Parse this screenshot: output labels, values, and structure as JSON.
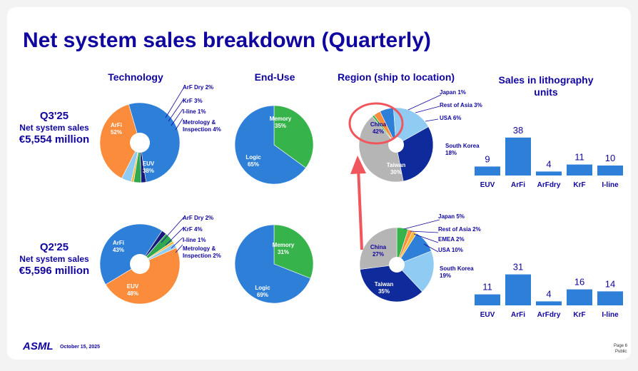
{
  "title": "Net system sales breakdown (Quarterly)",
  "headers": {
    "technology": "Technology",
    "end_use": "End-Use",
    "region": "Region (ship to location)",
    "litho_line1": "Sales in lithography",
    "litho_line2": "units"
  },
  "quarters": [
    {
      "quarter": "Q3'25",
      "label": "Net system sales",
      "value": "€5,554 million"
    },
    {
      "quarter": "Q2'25",
      "label": "Net system sales",
      "value": "€5,596 million"
    }
  ],
  "colors": {
    "brand": "#10069f",
    "arfi": "#2e7fd8",
    "euv": "#fb8c3c",
    "arf_dry": "#19197a",
    "krf": "#2fa84f",
    "iline": "#f6b93b",
    "metrology": "#8fcbf2",
    "memory": "#36b34a",
    "logic": "#2e7fd8",
    "china": "#b5b5b5",
    "taiwan": "#0f2a9b",
    "south_korea": "#8fcbf2",
    "usa": "#2e7fd8",
    "rest_of_asia": "#fb8c3c",
    "japan": "#36b34a",
    "emea": "#f6b93b",
    "bar": "#2e7fd8",
    "highlight": "#f0565b"
  },
  "chart_data": [
    {
      "type": "pie",
      "id": "tech_q3",
      "quarter": "Q3'25",
      "title": "Technology",
      "slices": [
        {
          "name": "ArFi",
          "value": 52,
          "label": "52%"
        },
        {
          "name": "EUV",
          "value": 38,
          "label": "38%"
        },
        {
          "name": "ArF Dry",
          "value": 2,
          "label": "2%"
        },
        {
          "name": "KrF",
          "value": 3,
          "label": "3%"
        },
        {
          "name": "I-line",
          "value": 1,
          "label": "1%"
        },
        {
          "name": "Metrology & Inspection",
          "value": 4,
          "label": "4%"
        }
      ]
    },
    {
      "type": "pie",
      "id": "enduse_q3",
      "quarter": "Q3'25",
      "title": "End-Use",
      "slices": [
        {
          "name": "Memory",
          "value": 35,
          "label": "35%"
        },
        {
          "name": "Logic",
          "value": 65,
          "label": "65%"
        }
      ]
    },
    {
      "type": "pie",
      "id": "region_q3",
      "quarter": "Q3'25",
      "title": "Region (ship to location)",
      "slices": [
        {
          "name": "China",
          "value": 42,
          "label": "42%"
        },
        {
          "name": "Japan",
          "value": 1,
          "label": "1%"
        },
        {
          "name": "Rest of Asia",
          "value": 3,
          "label": "3%"
        },
        {
          "name": "USA",
          "value": 6,
          "label": "6%"
        },
        {
          "name": "South Korea",
          "value": 18,
          "label": "18%"
        },
        {
          "name": "Taiwan",
          "value": 30,
          "label": "30%"
        }
      ]
    },
    {
      "type": "bar",
      "id": "litho_q3",
      "quarter": "Q3'25",
      "title": "Sales in lithography units",
      "categories": [
        "EUV",
        "ArFi",
        "ArFdry",
        "KrF",
        "I-line"
      ],
      "values": [
        9,
        38,
        4,
        11,
        10
      ]
    },
    {
      "type": "pie",
      "id": "tech_q2",
      "quarter": "Q2'25",
      "title": "Technology",
      "slices": [
        {
          "name": "ArFi",
          "value": 43,
          "label": "43%"
        },
        {
          "name": "EUV",
          "value": 48,
          "label": "48%"
        },
        {
          "name": "ArF Dry",
          "value": 2,
          "label": "2%"
        },
        {
          "name": "KrF",
          "value": 4,
          "label": "4%"
        },
        {
          "name": "I-line",
          "value": 1,
          "label": "1%"
        },
        {
          "name": "Metrology & Inspection",
          "value": 2,
          "label": "2%"
        }
      ]
    },
    {
      "type": "pie",
      "id": "enduse_q2",
      "quarter": "Q2'25",
      "title": "End-Use",
      "slices": [
        {
          "name": "Memory",
          "value": 31,
          "label": "31%"
        },
        {
          "name": "Logic",
          "value": 69,
          "label": "69%"
        }
      ]
    },
    {
      "type": "pie",
      "id": "region_q2",
      "quarter": "Q2'25",
      "title": "Region (ship to location)",
      "slices": [
        {
          "name": "China",
          "value": 27,
          "label": "27%"
        },
        {
          "name": "Japan",
          "value": 5,
          "label": "5%"
        },
        {
          "name": "Rest of Asia",
          "value": 2,
          "label": "2%"
        },
        {
          "name": "EMEA",
          "value": 2,
          "label": "2%"
        },
        {
          "name": "USA",
          "value": 10,
          "label": "10%"
        },
        {
          "name": "South Korea",
          "value": 19,
          "label": "19%"
        },
        {
          "name": "Taiwan",
          "value": 35,
          "label": "35%"
        }
      ]
    },
    {
      "type": "bar",
      "id": "litho_q2",
      "quarter": "Q2'25",
      "title": "Sales in lithography units",
      "categories": [
        "EUV",
        "ArFi",
        "ArFdry",
        "KrF",
        "I-line"
      ],
      "values": [
        11,
        31,
        4,
        16,
        14
      ]
    }
  ],
  "legend_labels": {
    "tech_q3": {
      "arf_dry": "ArF Dry 2%",
      "krf": "KrF 3%",
      "iline": "I-line 1%",
      "metro1": "Metrology &",
      "metro2": "Inspection 4%"
    },
    "tech_q2": {
      "arf_dry": "ArF Dry 2%",
      "krf": "KrF 4%",
      "iline": "I-line 1%",
      "metro1": "Metrology &",
      "metro2": "Inspection 2%"
    },
    "region_q3": {
      "japan": "Japan 1%",
      "rest_of_asia": "Rest of Asia 3%",
      "usa": "USA 6%",
      "south_korea1": "South Korea",
      "south_korea2": "18%"
    },
    "region_q2": {
      "japan": "Japan 5%",
      "rest_of_asia": "Rest of Asia 2%",
      "emea": "EMEA 2%",
      "usa": "USA 10%",
      "south_korea1": "South Korea",
      "south_korea2": "19%"
    }
  },
  "footer": {
    "logo": "ASML",
    "date": "October 15, 2025",
    "page": "Page 6",
    "classification": "Public"
  }
}
